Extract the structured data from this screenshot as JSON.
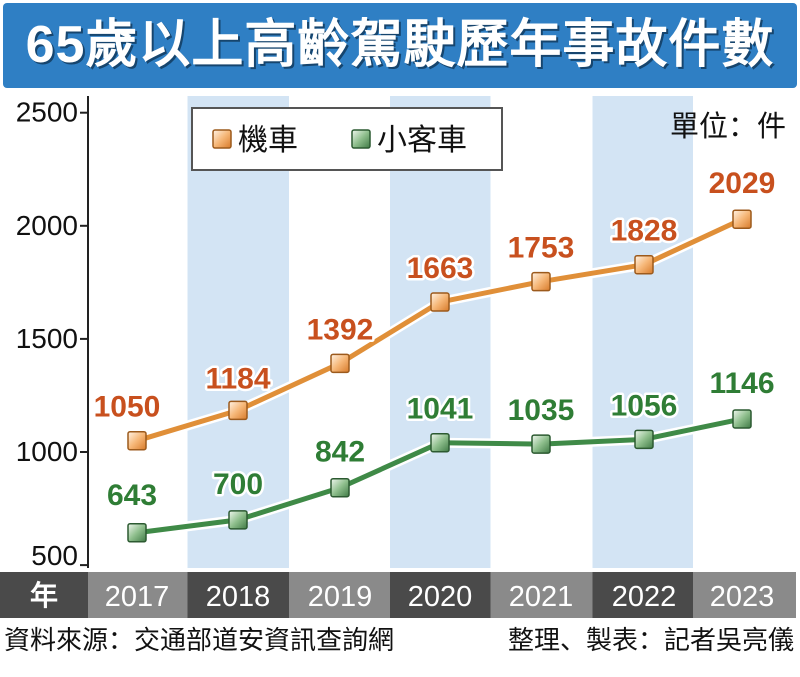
{
  "title": "65歲以上高齡駕駛歷年事故件數",
  "unit": "單位：件",
  "source": "資料來源：交通部道安資訊查詢網",
  "credit": "整理、製表：記者吳亮儀",
  "colors": {
    "title_bg": "#2f7fc4",
    "motorcycle": "#e08f38",
    "motorcycle_label": "#c8501e",
    "car": "#3f8a47",
    "car_label": "#2f7d35",
    "band": "#d3e4f4",
    "xaxis_dark": "#4a4a4a",
    "xaxis_light": "#8a8a8a"
  },
  "chart_data": {
    "type": "line",
    "x_header": "年",
    "categories": [
      "2017",
      "2018",
      "2019",
      "2020",
      "2021",
      "2022",
      "2023"
    ],
    "series": [
      {
        "name": "機車",
        "values": [
          1050,
          1184,
          1392,
          1663,
          1753,
          1828,
          2029
        ]
      },
      {
        "name": "小客車",
        "values": [
          643,
          700,
          842,
          1041,
          1035,
          1056,
          1146
        ]
      }
    ],
    "yticks": [
      500,
      1000,
      1500,
      2000,
      2500
    ],
    "ylim": [
      450,
      2520
    ],
    "legend_position": "top-left",
    "grid": false
  }
}
